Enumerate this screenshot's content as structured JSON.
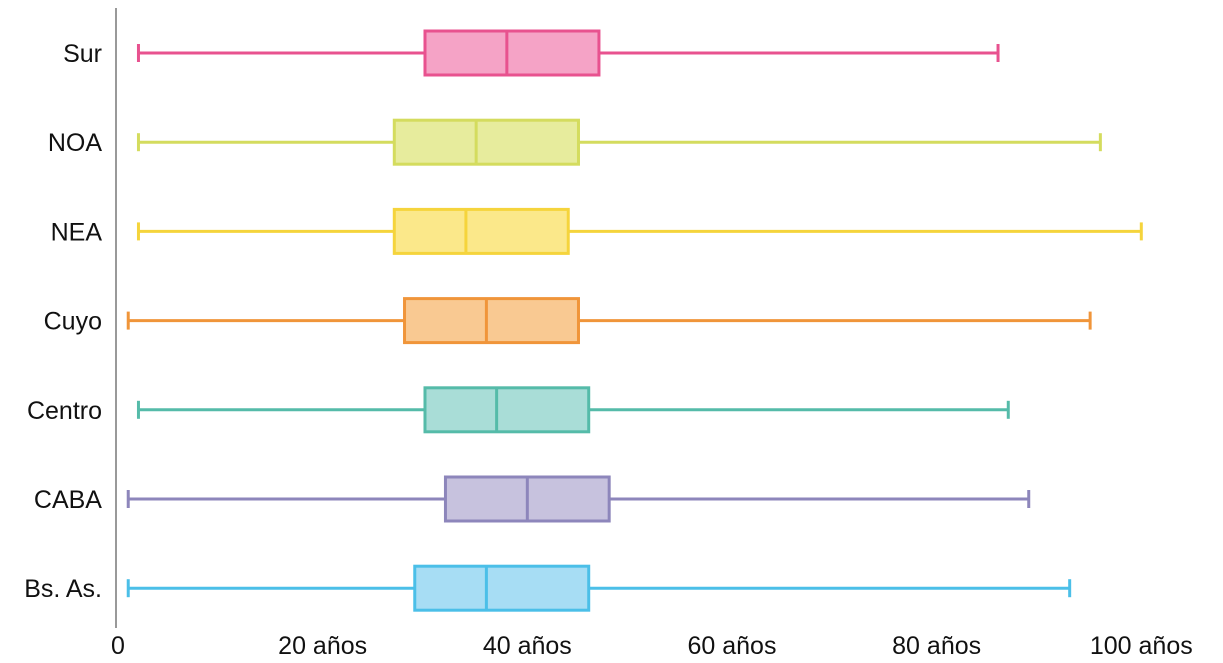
{
  "chart_data": {
    "type": "boxplot",
    "orientation": "horizontal",
    "title": "",
    "xlabel": "",
    "ylabel": "",
    "xlim": [
      0,
      103
    ],
    "grid": false,
    "legend": "none",
    "categories": [
      "Sur",
      "NOA",
      "NEA",
      "Cuyo",
      "Centro",
      "CABA",
      "Bs. As."
    ],
    "xticks": [
      {
        "value": 0,
        "label": "0"
      },
      {
        "value": 20,
        "label": "20 años"
      },
      {
        "value": 40,
        "label": "40 años"
      },
      {
        "value": 60,
        "label": "60 años"
      },
      {
        "value": 80,
        "label": "80 años"
      },
      {
        "value": 100,
        "label": "100 años"
      }
    ],
    "boxes": [
      {
        "category": "Sur",
        "min": 2,
        "q1": 30,
        "median": 38,
        "q3": 47,
        "max": 86,
        "stroke": "#e8528f",
        "fill": "#f5a3c6"
      },
      {
        "category": "NOA",
        "min": 2,
        "q1": 27,
        "median": 35,
        "q3": 45,
        "max": 96,
        "stroke": "#d4dc5e",
        "fill": "#e7ec9d"
      },
      {
        "category": "NEA",
        "min": 2,
        "q1": 27,
        "median": 34,
        "q3": 44,
        "max": 100,
        "stroke": "#f5d43c",
        "fill": "#fbe88a"
      },
      {
        "category": "Cuyo",
        "min": 1,
        "q1": 28,
        "median": 36,
        "q3": 45,
        "max": 95,
        "stroke": "#f0953a",
        "fill": "#f9c992"
      },
      {
        "category": "Centro",
        "min": 2,
        "q1": 30,
        "median": 37,
        "q3": 46,
        "max": 87,
        "stroke": "#55bba9",
        "fill": "#a9ddd7"
      },
      {
        "category": "CABA",
        "min": 1,
        "q1": 32,
        "median": 40,
        "q3": 48,
        "max": 89,
        "stroke": "#8d86bb",
        "fill": "#c7c2de"
      },
      {
        "category": "Bs. As.",
        "min": 1,
        "q1": 29,
        "median": 36,
        "q3": 46,
        "max": 93,
        "stroke": "#4bbfe8",
        "fill": "#a7ddf4"
      }
    ]
  }
}
